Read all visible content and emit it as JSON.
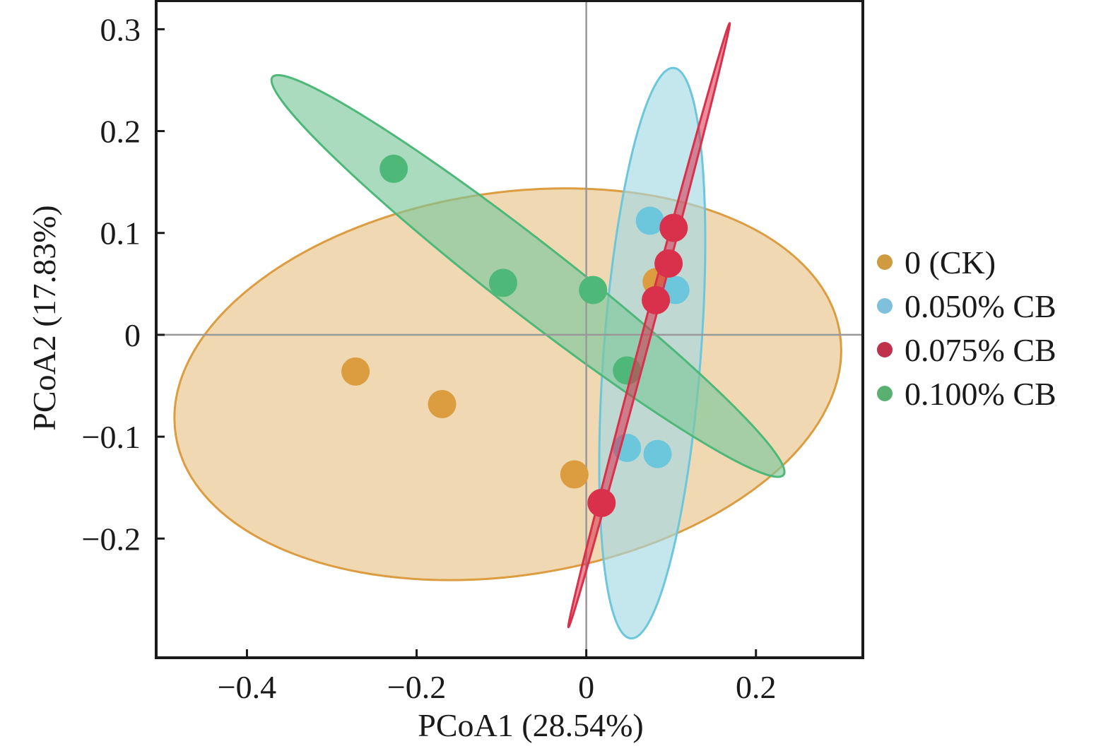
{
  "chart_data": {
    "type": "scatter",
    "title": "",
    "xlabel": "PCoA1 (28.54%)",
    "ylabel": "PCoA2 (17.83%)",
    "xlim": [
      -0.507,
      0.326
    ],
    "ylim": [
      -0.317,
      0.328
    ],
    "x_ticks": [
      -0.4,
      -0.2,
      0,
      0.2
    ],
    "x_tick_labels": [
      "−0.4",
      "−0.2",
      "0",
      "0.2"
    ],
    "y_ticks": [
      0.3,
      0.2,
      0.1,
      0,
      -0.1,
      -0.2
    ],
    "y_tick_labels": [
      "0.3",
      "0.2",
      "0.1",
      "0",
      "−0.1",
      "−0.2"
    ],
    "grid": false,
    "zero_lines": true,
    "legend_position": "right",
    "series": [
      {
        "name": "0 (CK)",
        "color": "#dc9c40",
        "fill": "#e8c488",
        "points": [
          [
            -0.272,
            -0.036
          ],
          [
            -0.17,
            -0.068
          ],
          [
            -0.014,
            -0.137
          ],
          [
            0.083,
            0.052
          ]
        ],
        "ellipse": {
          "axis_start": [
            -0.484,
            -0.098
          ],
          "axis_end": [
            0.299,
            0.001
          ],
          "minor_ratio": 0.57
        }
      },
      {
        "name": "0.050% CB",
        "color": "#6cc6dc",
        "fill": "#a4d8e4",
        "points": [
          [
            0.075,
            0.112
          ],
          [
            0.105,
            0.044
          ],
          [
            0.048,
            -0.111
          ],
          [
            0.084,
            -0.117
          ]
        ],
        "ellipse": {
          "axis_start": [
            0.103,
            0.262
          ],
          "axis_end": [
            0.0525,
            -0.298
          ],
          "minor_ratio": 0.17
        }
      },
      {
        "name": "0.075% CB",
        "color": "#d9304c",
        "fill": "#d9304c",
        "points": [
          [
            0.103,
            0.105
          ],
          [
            0.097,
            0.07
          ],
          [
            0.082,
            0.034
          ],
          [
            0.018,
            -0.165
          ]
        ],
        "ellipse": {
          "axis_start": [
            0.169,
            0.306
          ],
          "axis_end": [
            -0.021,
            -0.287
          ],
          "minor_ratio": 0.014
        }
      },
      {
        "name": "0.100% CB",
        "color": "#4db878",
        "fill": "#7cc89c",
        "points": [
          [
            -0.227,
            0.163
          ],
          [
            -0.098,
            0.051
          ],
          [
            0.008,
            0.044
          ],
          [
            0.048,
            -0.035
          ]
        ],
        "ellipse": {
          "axis_start": [
            -0.37,
            0.253
          ],
          "axis_end": [
            0.2325,
            -0.1375
          ],
          "minor_ratio": 0.11
        }
      }
    ],
    "legend": [
      {
        "label": "0 (CK)",
        "color": "#d09a40"
      },
      {
        "label": "0.050% CB",
        "color": "#7fc0dc"
      },
      {
        "label": "0.075% CB",
        "color": "#c0304a"
      },
      {
        "label": "0.100% CB",
        "color": "#5ab070"
      }
    ]
  }
}
